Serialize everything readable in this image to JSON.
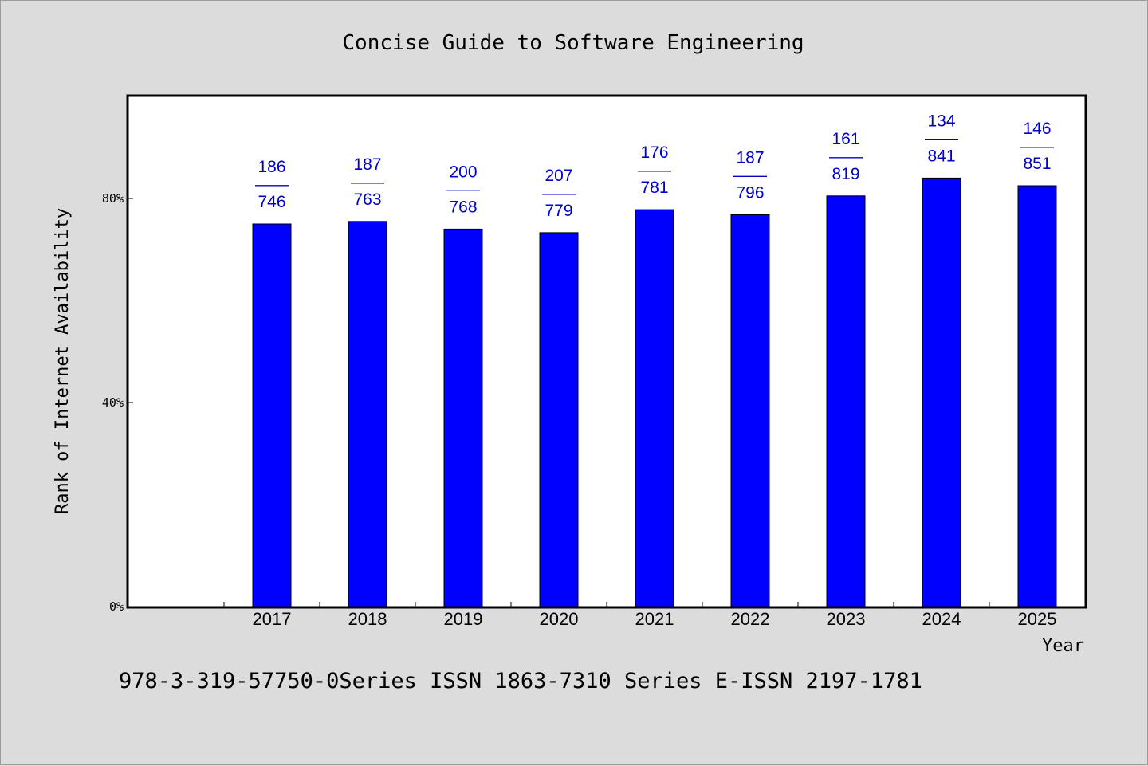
{
  "chart_data": {
    "type": "bar",
    "title": "Concise Guide to Software Engineering",
    "xlabel": "Year",
    "ylabel": "Rank of Internet Availability",
    "categories": [
      "2017",
      "2018",
      "2019",
      "2020",
      "2021",
      "2022",
      "2023",
      "2024",
      "2025"
    ],
    "values": [
      75,
      75.5,
      74,
      73.3,
      77.8,
      76.8,
      80.5,
      84,
      82.5
    ],
    "bar_labels": [
      {
        "top": "186",
        "bottom": "746"
      },
      {
        "top": "187",
        "bottom": "763"
      },
      {
        "top": "200",
        "bottom": "768"
      },
      {
        "top": "207",
        "bottom": "779"
      },
      {
        "top": "176",
        "bottom": "781"
      },
      {
        "top": "187",
        "bottom": "796"
      },
      {
        "top": "161",
        "bottom": "819"
      },
      {
        "top": "134",
        "bottom": "841"
      },
      {
        "top": "146",
        "bottom": "851"
      }
    ],
    "label_separator": "——",
    "yticks": [
      {
        "value": 0,
        "label": "0%"
      },
      {
        "value": 40,
        "label": "40%"
      },
      {
        "value": 80,
        "label": "80%"
      }
    ],
    "ylim": [
      0,
      100
    ],
    "x_slots": 10,
    "grid": false,
    "colors": {
      "bar": "#0000ff",
      "bar_label": "#0000cc",
      "background": "#dcdcdc",
      "plot_background": "#ffffff"
    }
  },
  "footer": {
    "text": "978-3-319-57750-0Series ISSN 1863-7310 Series E-ISSN 2197-1781"
  }
}
